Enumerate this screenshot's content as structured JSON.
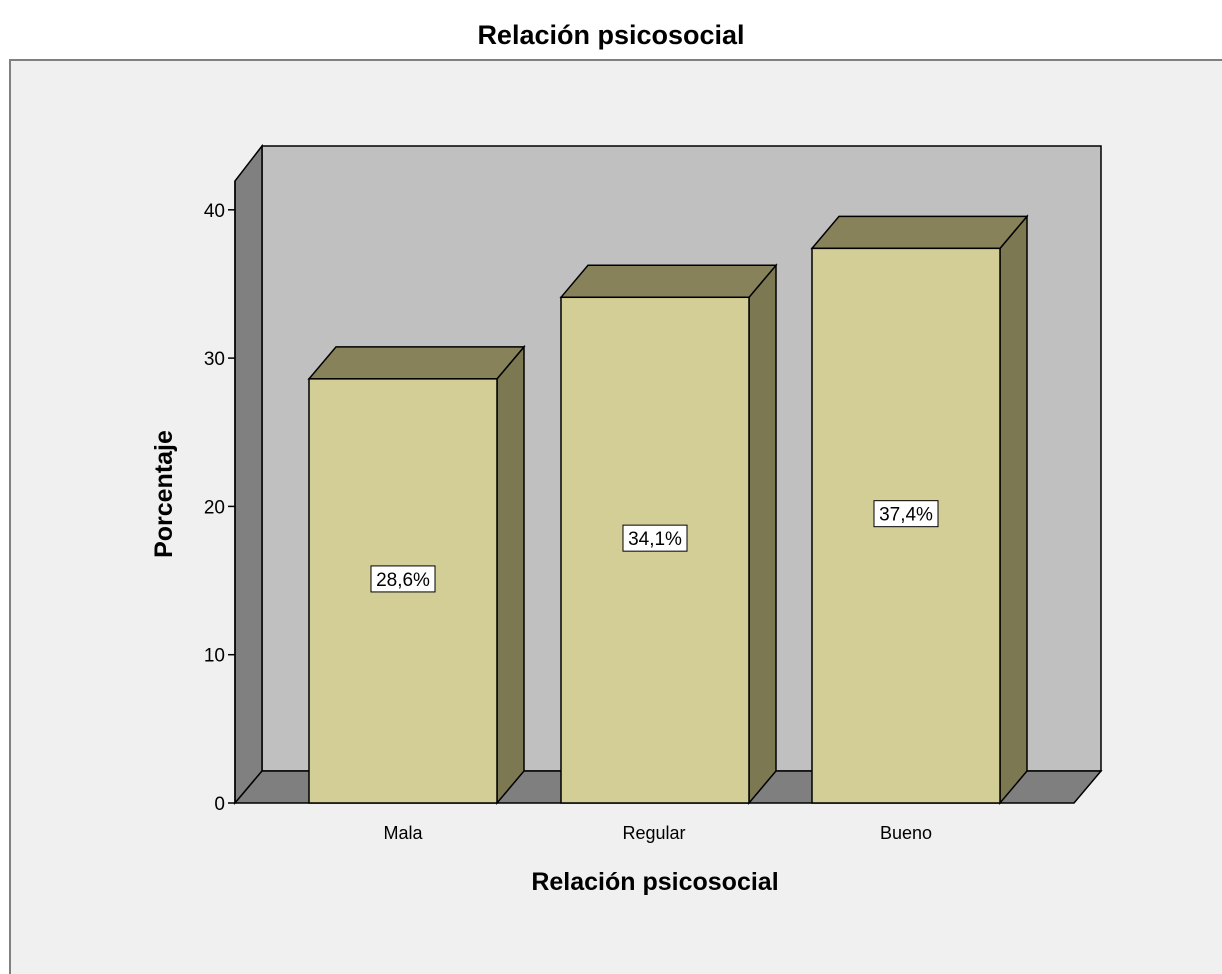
{
  "chart_data": {
    "type": "bar",
    "title": "Relación psicosocial",
    "xlabel": "Relación psicosocial",
    "ylabel": "Porcentaje",
    "categories": [
      "Mala",
      "Regular",
      "Bueno"
    ],
    "values": [
      28.6,
      34.1,
      37.4
    ],
    "data_labels": [
      "28,6%",
      "34,1%",
      "37,4%"
    ],
    "ylim": [
      0,
      40
    ],
    "yticks": [
      0,
      10,
      20,
      30,
      40
    ],
    "ytick_labels": [
      "0",
      "10",
      "20",
      "30",
      "40"
    ],
    "grid": false,
    "legend": "none",
    "style": "3d",
    "colors": {
      "bar_front": "#d3cd96",
      "bar_top": "#88825a",
      "bar_side": "#7c7852",
      "back_wall": "#c0c0c0",
      "side_wall": "#808080",
      "floor": "#7f7f7f",
      "plot_background": "#f0f0f0"
    }
  }
}
